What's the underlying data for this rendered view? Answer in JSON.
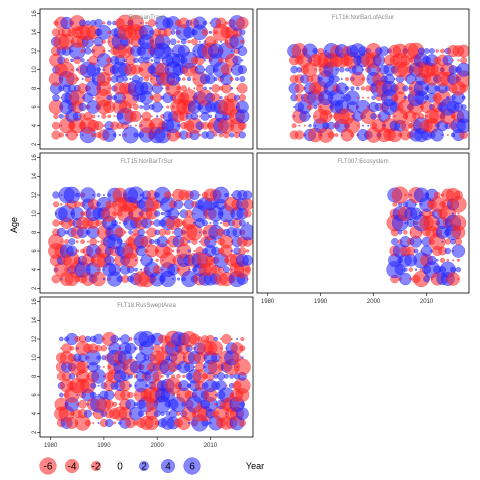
{
  "chart_data": {
    "type": "scatter",
    "description_kind": "bubble residual plot (age by year), 5 survey panels",
    "xlabel": "Year",
    "ylabel": "Age",
    "xlim": [
      1978,
      2018
    ],
    "ylim": [
      1.5,
      16.5
    ],
    "x_ticks": [
      "1980",
      "1990",
      "2000",
      "2010"
    ],
    "y_ticks": [
      "2",
      "4",
      "6",
      "8",
      "10",
      "12",
      "14",
      "16"
    ],
    "colors": {
      "positive": "#2222ff",
      "negative": "#ff2222",
      "frame": "#000000"
    },
    "legend": {
      "labels": [
        "-6",
        "-4",
        "-2",
        "0",
        "2",
        "4",
        "6"
      ],
      "values": [
        -6,
        -4,
        -2,
        0,
        2,
        4,
        6
      ]
    },
    "panels": [
      {
        "title": "RussianTrawl",
        "year_range": [
          1981,
          2016
        ],
        "age_range": [
          3,
          15
        ],
        "seed": 11
      },
      {
        "title": "FLT16:NorBarLofAcSur",
        "year_range": [
          1985,
          2017
        ],
        "age_range": [
          3,
          12
        ],
        "seed": 23
      },
      {
        "title": "FLT15:NorBarTrSur",
        "year_range": [
          1981,
          2017
        ],
        "age_range": [
          3,
          12
        ],
        "seed": 37
      },
      {
        "title": "FLT007:Ecosystem",
        "year_range": [
          2004,
          2016
        ],
        "age_range": [
          3,
          12
        ],
        "seed": 41
      },
      {
        "title": "FLT18:RusSweptArea",
        "year_range": [
          1982,
          2016
        ],
        "age_range": [
          3,
          12
        ],
        "seed": 53
      }
    ]
  }
}
